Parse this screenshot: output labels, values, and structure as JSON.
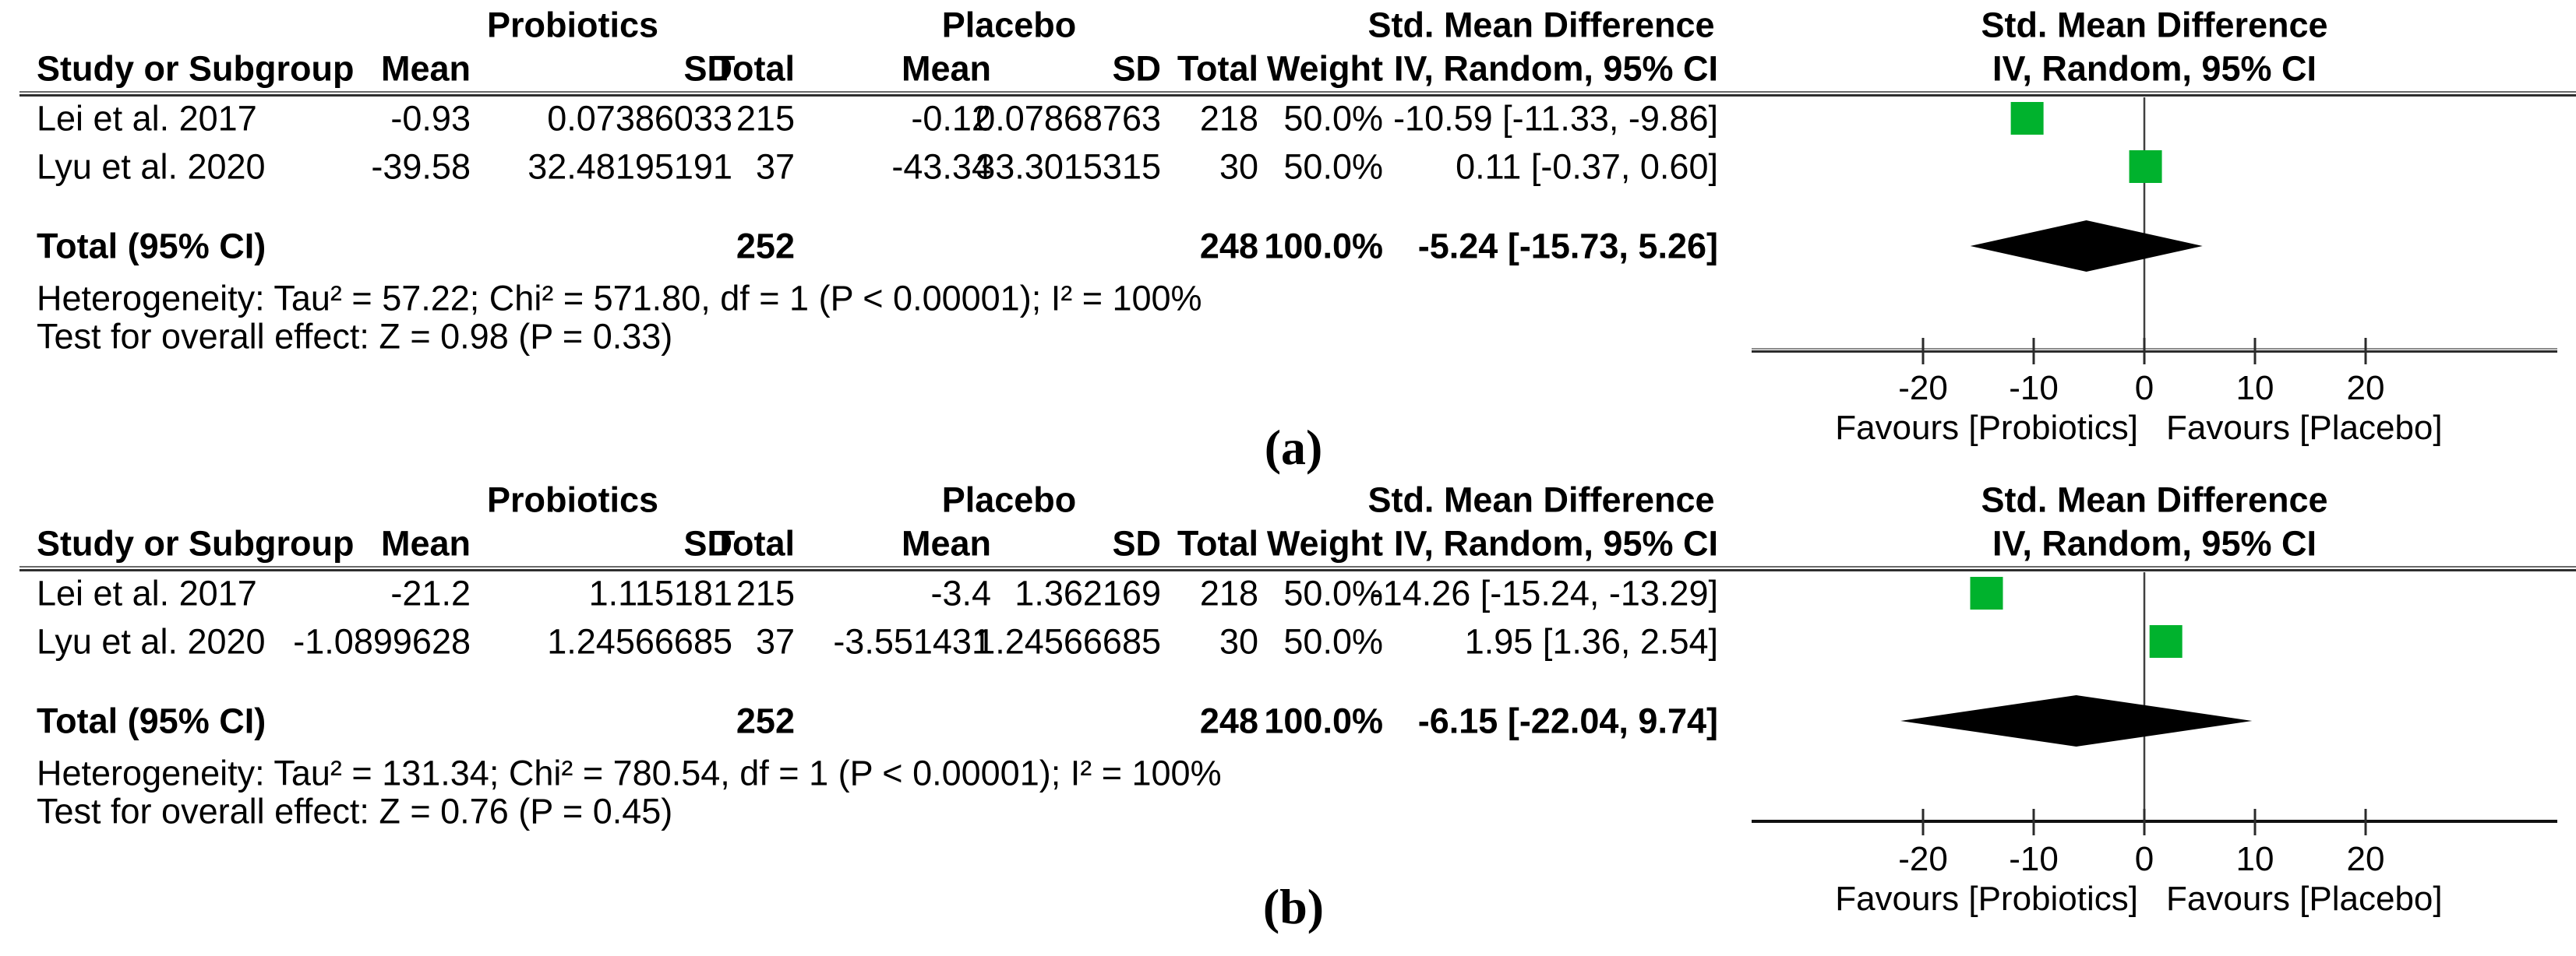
{
  "colors": {
    "square_green": "#00b22d",
    "diamond_black": "#000000",
    "zero_line_gray": "#404040",
    "axis_dark": "#2b2b2b",
    "text_black": "#000000"
  },
  "figure": {
    "caption_a": "(a)",
    "caption_b": "(b)"
  },
  "chart_data": [
    {
      "type": "forest",
      "panel_label": "(a)",
      "group_headers": {
        "experimental": "Probiotics",
        "control": "Placebo",
        "effect": "Std. Mean Difference",
        "plot_effect": "Std. Mean Difference"
      },
      "column_headers": {
        "study": "Study or Subgroup",
        "mean": "Mean",
        "sd": "SD",
        "total": "Total",
        "weight": "Weight",
        "ci": "IV, Random, 95% CI",
        "plot_ci": "IV, Random, 95% CI"
      },
      "studies": [
        {
          "name": "Lei et al. 2017",
          "exp_mean": "-0.93",
          "exp_sd": "0.07386033",
          "exp_total": "215",
          "ctl_mean": "-0.12",
          "ctl_sd": "0.07868763",
          "ctl_total": "218",
          "weight": "50.0%",
          "ci_text": "-10.59 [-11.33, -9.86]",
          "est": -10.59,
          "lo": -11.33,
          "hi": -9.86
        },
        {
          "name": "Lyu et al. 2020",
          "exp_mean": "-39.58",
          "exp_sd": "32.48195191",
          "exp_total": "37",
          "ctl_mean": "-43.34",
          "ctl_sd": "33.3015315",
          "ctl_total": "30",
          "weight": "50.0%",
          "ci_text": "0.11 [-0.37, 0.60]",
          "est": 0.11,
          "lo": -0.37,
          "hi": 0.6
        }
      ],
      "total": {
        "label": "Total (95% CI)",
        "exp_total": "252",
        "ctl_total": "248",
        "weight": "100.0%",
        "ci_text": "-5.24 [-15.73, 5.26]",
        "est": -5.24,
        "lo": -15.73,
        "hi": 5.26
      },
      "heterogeneity": "Heterogeneity: Tau² = 57.22; Chi² = 571.80, df = 1 (P < 0.00001); I² = 100%",
      "overall_effect": "Test for overall effect: Z = 0.98 (P = 0.33)",
      "axis": {
        "ticks": [
          -20,
          -10,
          0,
          10,
          20
        ],
        "min": -36,
        "max": 38,
        "favours_left": "Favours [Probiotics]",
        "favours_right": "Favours [Placebo]"
      }
    },
    {
      "type": "forest",
      "panel_label": "(b)",
      "group_headers": {
        "experimental": "Probiotics",
        "control": "Placebo",
        "effect": "Std. Mean Difference",
        "plot_effect": "Std. Mean Difference"
      },
      "column_headers": {
        "study": "Study or Subgroup",
        "mean": "Mean",
        "sd": "SD",
        "total": "Total",
        "weight": "Weight",
        "ci": "IV, Random, 95% CI",
        "plot_ci": "IV, Random, 95% CI"
      },
      "studies": [
        {
          "name": "Lei et al. 2017",
          "exp_mean": "-21.2",
          "exp_sd": "1.115181",
          "exp_total": "215",
          "ctl_mean": "-3.4",
          "ctl_sd": "1.362169",
          "ctl_total": "218",
          "weight": "50.0%",
          "ci_text": "-14.26 [-15.24, -13.29]",
          "est": -14.26,
          "lo": -15.24,
          "hi": -13.29
        },
        {
          "name": "Lyu et al. 2020",
          "exp_mean": "-1.0899628",
          "exp_sd": "1.24566685",
          "exp_total": "37",
          "ctl_mean": "-3.551431",
          "ctl_sd": "1.24566685",
          "ctl_total": "30",
          "weight": "50.0%",
          "ci_text": "1.95 [1.36, 2.54]",
          "est": 1.95,
          "lo": 1.36,
          "hi": 2.54
        }
      ],
      "total": {
        "label": "Total (95% CI)",
        "exp_total": "252",
        "ctl_total": "248",
        "weight": "100.0%",
        "ci_text": "-6.15 [-22.04, 9.74]",
        "est": -6.15,
        "lo": -22.04,
        "hi": 9.74
      },
      "heterogeneity": "Heterogeneity: Tau² = 131.34; Chi² = 780.54, df = 1 (P < 0.00001); I² = 100%",
      "overall_effect": "Test for overall effect: Z = 0.76 (P = 0.45)",
      "axis": {
        "ticks": [
          -20,
          -10,
          0,
          10,
          20
        ],
        "min": -36,
        "max": 38,
        "favours_left": "Favours [Probiotics]",
        "favours_right": "Favours [Placebo]"
      }
    }
  ]
}
